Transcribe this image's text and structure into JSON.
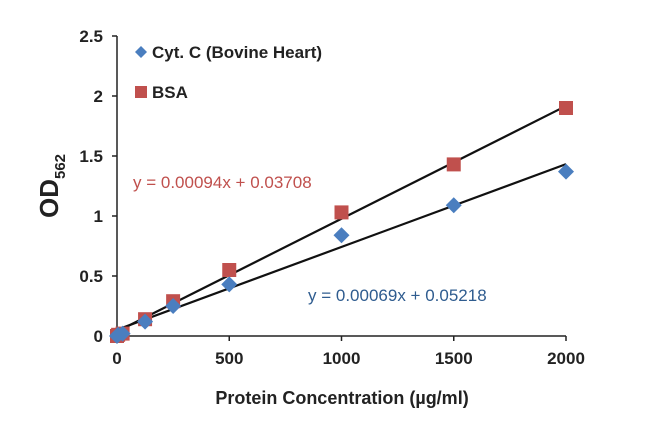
{
  "chart_data": {
    "type": "scatter",
    "xlabel": "Protein Concentration (µg/ml)",
    "ylabel": "OD",
    "ylabel_sub": "562",
    "xlim": [
      0,
      2000
    ],
    "ylim": [
      0,
      2.5
    ],
    "xticks": [
      0,
      500,
      1000,
      1500,
      2000
    ],
    "xtick_labels": [
      "0",
      "500",
      "1000",
      "1500",
      "2000"
    ],
    "yticks": [
      0,
      0.5,
      1,
      1.5,
      2,
      2.5
    ],
    "ytick_labels": [
      "0",
      "0.5",
      "1",
      "1.5",
      "2",
      "2.5"
    ],
    "grid": false,
    "legend_position": "top-left",
    "series": [
      {
        "name": "Cyt. C (Bovine Heart)",
        "marker": "diamond",
        "color": "#4a7ebf",
        "x": [
          0,
          5,
          25,
          125,
          250,
          500,
          1000,
          1500,
          2000
        ],
        "y": [
          0.0,
          0.01,
          0.02,
          0.12,
          0.25,
          0.43,
          0.84,
          1.09,
          1.37
        ],
        "trendline": {
          "slope": 0.00069,
          "intercept": 0.05218,
          "label": "y = 0.00069x + 0.05218",
          "label_color": "#2f5c8f"
        }
      },
      {
        "name": "BSA",
        "marker": "square",
        "color": "#c0504d",
        "x": [
          0,
          5,
          25,
          125,
          250,
          500,
          1000,
          1500,
          2000
        ],
        "y": [
          0.0,
          0.01,
          0.02,
          0.14,
          0.29,
          0.55,
          1.03,
          1.43,
          1.9
        ],
        "trendline": {
          "slope": 0.00094,
          "intercept": 0.03708,
          "label": "y = 0.00094x + 0.03708",
          "label_color": "#c0504d"
        }
      }
    ]
  }
}
